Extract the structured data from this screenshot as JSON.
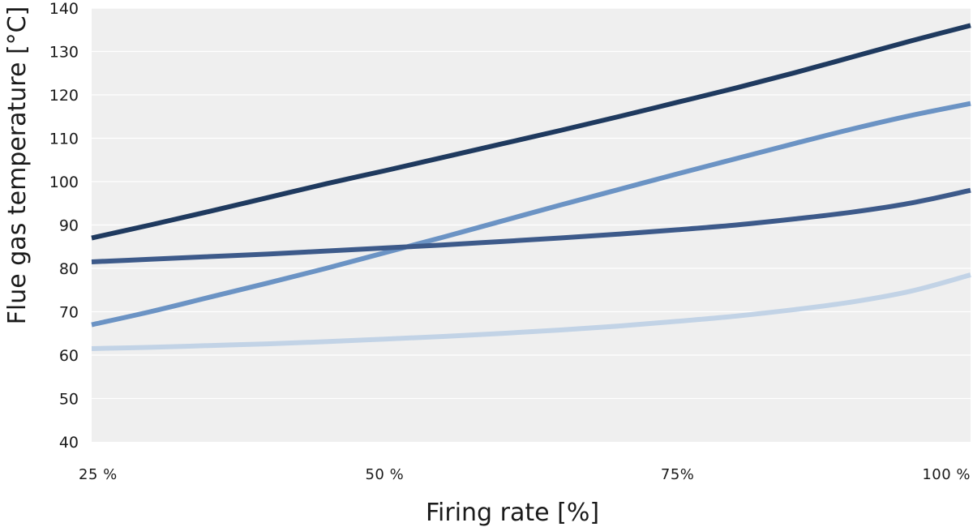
{
  "chart_data": {
    "type": "line",
    "title": "",
    "xlabel": "Firing rate [%]",
    "ylabel": "Flue gas temperature [°C]",
    "x_ticks": [
      {
        "value": 25,
        "label": "25 %"
      },
      {
        "value": 50,
        "label": "50 %"
      },
      {
        "value": 75,
        "label": "75%"
      },
      {
        "value": 100,
        "label": "100 %"
      }
    ],
    "y_ticks": [
      40,
      50,
      60,
      70,
      80,
      90,
      100,
      110,
      120,
      130,
      140
    ],
    "xlim": [
      25,
      100
    ],
    "ylim": [
      40,
      140
    ],
    "grid": "horizontal",
    "legend": "none",
    "plot_background": "#efefef",
    "gridline_color": "#ffffff",
    "x": [
      25,
      30,
      35,
      40,
      45,
      50,
      55,
      60,
      65,
      70,
      75,
      80,
      85,
      90,
      95,
      100
    ],
    "series": [
      {
        "color": "#1f3a5f",
        "values": [
          87,
          90,
          93.1,
          96.3,
          99.5,
          102.5,
          105.6,
          108.7,
          111.8,
          115,
          118.3,
          121.6,
          125.1,
          128.8,
          132.5,
          136
        ]
      },
      {
        "color": "#6b93c4",
        "values": [
          67,
          70,
          73.3,
          76.6,
          80,
          83.6,
          87.2,
          90.9,
          94.6,
          98.2,
          101.8,
          105.3,
          108.8,
          112.2,
          115.3,
          118
        ]
      },
      {
        "color": "#3d5a8a",
        "values": [
          81.5,
          82.1,
          82.7,
          83.3,
          84,
          84.7,
          85.4,
          86.2,
          87,
          87.9,
          88.9,
          90,
          91.4,
          93,
          95.1,
          98
        ]
      },
      {
        "color": "#c2d3e6",
        "values": [
          61.5,
          61.8,
          62.2,
          62.6,
          63.1,
          63.7,
          64.3,
          65,
          65.8,
          66.7,
          67.8,
          69,
          70.5,
          72.3,
          74.8,
          78.5
        ]
      }
    ]
  }
}
